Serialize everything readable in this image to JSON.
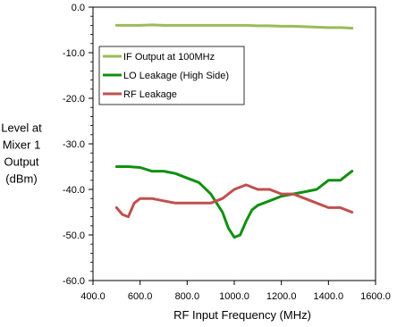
{
  "chart_data": {
    "type": "line",
    "title": "",
    "xlabel": "RF Input Frequency (MHz)",
    "ylabel": [
      "Level at",
      "Mixer 1",
      "Output",
      "(dBm)"
    ],
    "xlim": [
      400.0,
      1600.0
    ],
    "ylim": [
      -60.0,
      0.0
    ],
    "x_ticks": [
      "400.0",
      "600.0",
      "800.0",
      "1000.0",
      "1200.0",
      "1400.0",
      "1600.0"
    ],
    "y_ticks": [
      "0.0",
      "-10.0",
      "-20.0",
      "-30.0",
      "-40.0",
      "-50.0",
      "-60.0"
    ],
    "grid": false,
    "legend_position": "top-left",
    "series": [
      {
        "name": "IF Output at 100MHz",
        "color": "#9bbb59",
        "x": [
          500,
          550,
          600,
          650,
          700,
          750,
          800,
          850,
          900,
          950,
          1000,
          1050,
          1100,
          1150,
          1200,
          1250,
          1300,
          1350,
          1400,
          1450,
          1500
        ],
        "y": [
          -4.0,
          -4.0,
          -4.0,
          -3.9,
          -4.0,
          -4.0,
          -4.0,
          -4.0,
          -4.0,
          -4.0,
          -4.0,
          -4.0,
          -4.1,
          -4.1,
          -4.2,
          -4.2,
          -4.3,
          -4.4,
          -4.5,
          -4.5,
          -4.6
        ]
      },
      {
        "name": "LO Leakage (High Side)",
        "color": "#109010",
        "x": [
          500,
          550,
          600,
          650,
          700,
          750,
          800,
          850,
          900,
          950,
          975,
          1000,
          1025,
          1050,
          1075,
          1100,
          1150,
          1200,
          1250,
          1300,
          1350,
          1400,
          1450,
          1500
        ],
        "y": [
          -35.0,
          -35.0,
          -35.2,
          -36.0,
          -36.0,
          -36.5,
          -37.5,
          -38.5,
          -41.0,
          -45.0,
          -48.5,
          -50.5,
          -50.0,
          -47.0,
          -44.5,
          -43.5,
          -42.5,
          -41.5,
          -41.0,
          -40.5,
          -40.0,
          -38.0,
          -38.0,
          -36.0
        ]
      },
      {
        "name": "RF Leakage",
        "color": "#c0504d",
        "x": [
          500,
          525,
          550,
          575,
          600,
          650,
          700,
          750,
          800,
          850,
          900,
          950,
          1000,
          1050,
          1100,
          1150,
          1200,
          1250,
          1300,
          1350,
          1400,
          1450,
          1500
        ],
        "y": [
          -44.0,
          -45.5,
          -46.0,
          -43.0,
          -42.0,
          -42.0,
          -42.5,
          -43.0,
          -43.0,
          -43.0,
          -43.0,
          -42.0,
          -40.0,
          -39.0,
          -40.0,
          -40.0,
          -41.0,
          -41.0,
          -42.0,
          -43.0,
          -44.0,
          -44.0,
          -45.0
        ]
      }
    ]
  }
}
